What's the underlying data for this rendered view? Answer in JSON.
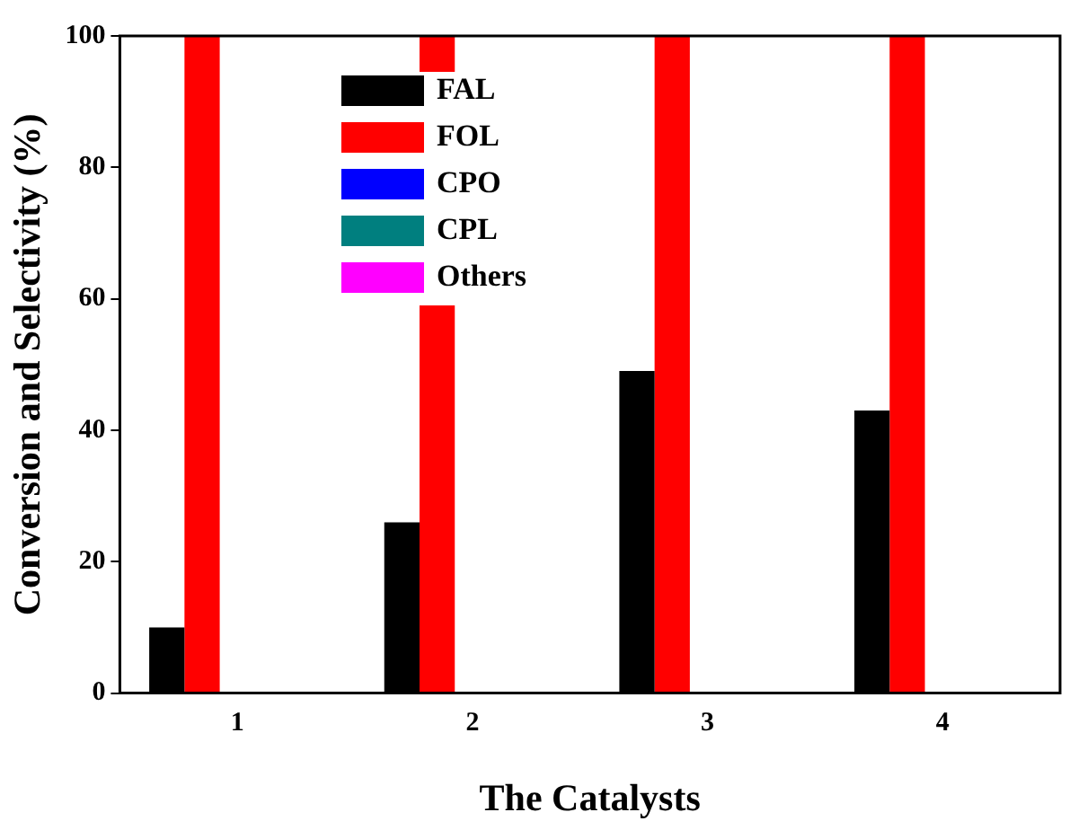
{
  "chart_data": {
    "type": "bar",
    "xlabel": "The Catalysts",
    "ylabel": "Conversion and Selectivity (%)",
    "categories": [
      "1",
      "2",
      "3",
      "4"
    ],
    "series": [
      {
        "name": "FAL",
        "color": "#000000",
        "values": [
          10,
          26,
          49,
          43
        ]
      },
      {
        "name": "FOL",
        "color": "#ff0000",
        "values": [
          100,
          100,
          100,
          100
        ]
      },
      {
        "name": "CPO",
        "color": "#0000ff",
        "values": [
          0,
          0,
          0,
          0
        ]
      },
      {
        "name": "CPL",
        "color": "#007f7f",
        "values": [
          0,
          0,
          0,
          0
        ]
      },
      {
        "name": "Others",
        "color": "#ff00ff",
        "values": [
          0,
          0,
          0,
          0
        ]
      }
    ],
    "ylim": [
      0,
      100
    ],
    "yticks": [
      0,
      20,
      40,
      60,
      80,
      100
    ],
    "legend": "top left",
    "grid": false
  }
}
